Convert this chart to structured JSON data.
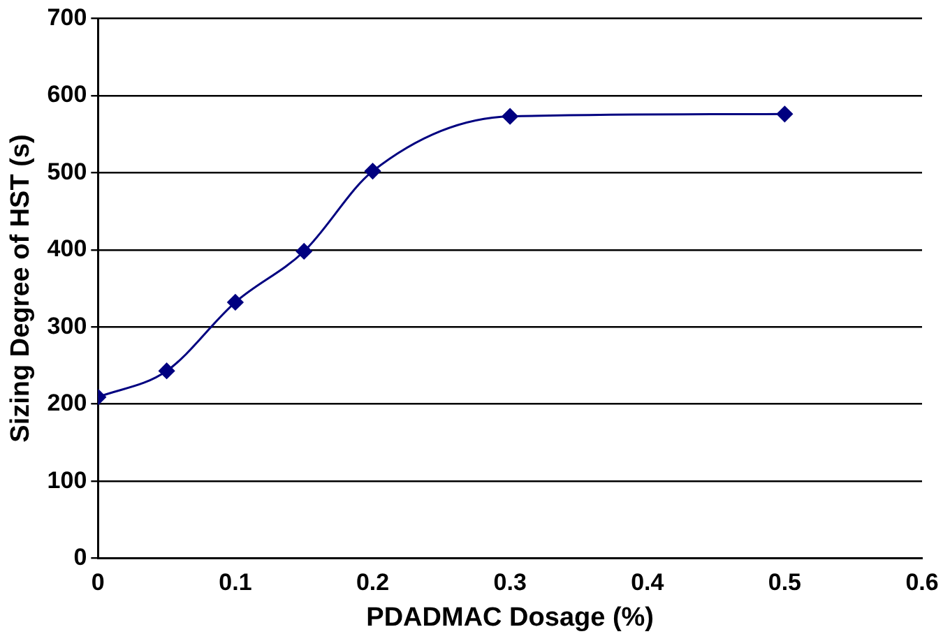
{
  "chart_data": {
    "type": "line",
    "xlabel": "PDADMAC Dosage (%)",
    "ylabel": "Sizing Degree of HST (s)",
    "x": [
      0,
      0.05,
      0.1,
      0.15,
      0.2,
      0.3,
      0.5
    ],
    "series": [
      {
        "color": "#000080",
        "values": [
          209,
          243,
          332,
          398,
          502,
          573,
          576
        ]
      }
    ],
    "xlim": [
      0,
      0.6
    ],
    "xticks": [
      0,
      0.1,
      0.2,
      0.3,
      0.4,
      0.5,
      0.6
    ],
    "ylim": [
      0,
      700
    ],
    "yticks": [
      0,
      100,
      200,
      300,
      400,
      500,
      600,
      700
    ],
    "grid": "y",
    "legend": false,
    "marker": "diamond",
    "line_style": "solid"
  }
}
